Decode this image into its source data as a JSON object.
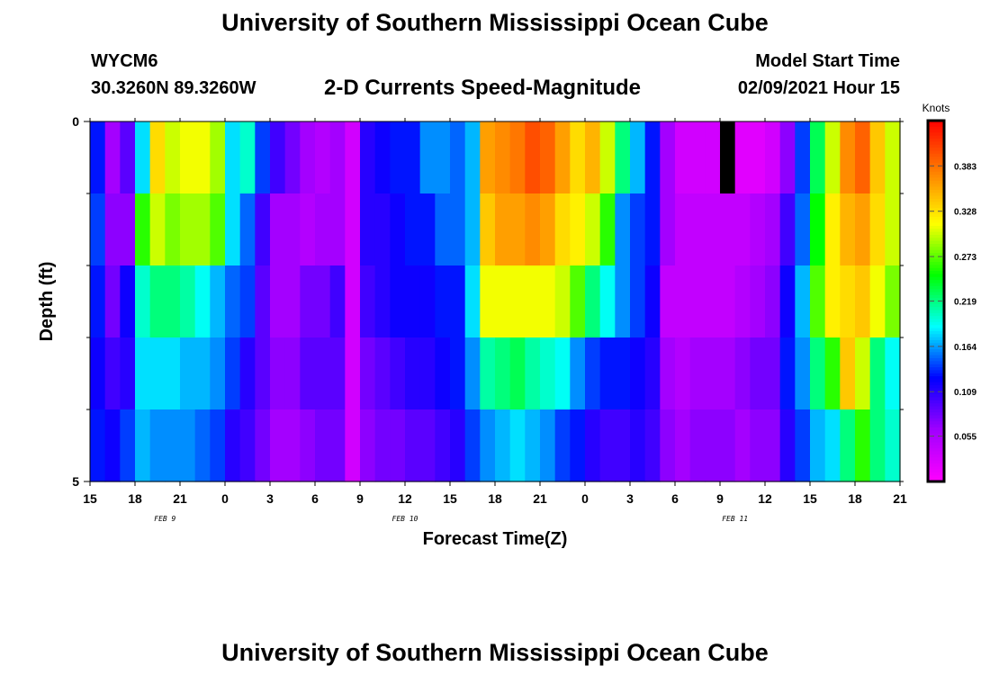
{
  "header": {
    "title": "University of Southern Mississippi Ocean Cube",
    "station": "WYCM6",
    "coords": "30.3260N 89.3260W",
    "chart_title": "2-D Currents Speed-Magnitude",
    "start_label": "Model Start Time",
    "start_value": "02/09/2021 Hour 15"
  },
  "footer": {
    "title": "University of Southern Mississippi Ocean Cube"
  },
  "chart_data": {
    "type": "heatmap",
    "title": "2-D Currents Speed-Magnitude",
    "xlabel": "Forecast Time(Z)",
    "ylabel": "Depth (ft)",
    "x_tick_labels": [
      "15",
      "18",
      "21",
      "0",
      "3",
      "6",
      "9",
      "12",
      "15",
      "18",
      "21",
      "0",
      "3",
      "6",
      "9",
      "12",
      "15",
      "18",
      "21"
    ],
    "date_labels": [
      {
        "label": "FEB 9",
        "hour_index": 5
      },
      {
        "label": "FEB 10",
        "hour_index": 21
      },
      {
        "label": "FEB 11",
        "hour_index": 43
      }
    ],
    "hours": 54,
    "y_tick_labels": [
      "0",
      "5"
    ],
    "ylim": [
      0,
      5
    ],
    "depth_layers": 5,
    "colorbar": {
      "label": "Knots",
      "range": [
        0,
        0.438
      ],
      "ticks": [
        "0.055",
        "0.109",
        "0.164",
        "0.219",
        "0.273",
        "0.328",
        "0.383"
      ],
      "colors": [
        "#ff00ff",
        "#a000ff",
        "#0000ff",
        "#00ffff",
        "#00ff00",
        "#ffff00",
        "#ff8000",
        "#ff0000"
      ]
    },
    "values": [
      [
        0.13,
        0.06,
        0.09,
        0.18,
        0.33,
        0.3,
        0.31,
        0.31,
        0.29,
        0.18,
        0.2,
        0.14,
        0.1,
        0.08,
        0.06,
        0.05,
        0.06,
        0.03,
        0.11,
        0.12,
        0.13,
        0.13,
        0.16,
        0.16,
        0.15,
        0.17,
        0.36,
        0.37,
        0.38,
        0.4,
        0.39,
        0.36,
        0.33,
        0.35,
        0.3,
        0.22,
        0.17,
        0.13,
        0.06,
        0.03,
        0.03,
        0.03,
        null,
        0.02,
        0.02,
        0.03,
        0.07,
        0.14,
        0.23,
        0.3,
        0.37,
        0.39,
        0.34,
        0.3
      ],
      [
        0.14,
        0.07,
        0.07,
        0.26,
        0.3,
        0.28,
        0.29,
        0.29,
        0.27,
        0.18,
        0.15,
        0.1,
        0.06,
        0.06,
        0.05,
        0.06,
        0.06,
        0.03,
        0.11,
        0.11,
        0.12,
        0.13,
        0.13,
        0.15,
        0.15,
        0.17,
        0.34,
        0.36,
        0.36,
        0.37,
        0.36,
        0.33,
        0.32,
        0.3,
        0.26,
        0.16,
        0.14,
        0.13,
        0.06,
        0.04,
        0.04,
        0.04,
        0.04,
        0.04,
        0.05,
        0.06,
        0.1,
        0.15,
        0.25,
        0.32,
        0.35,
        0.36,
        0.33,
        0.3
      ],
      [
        0.13,
        0.08,
        0.12,
        0.2,
        0.22,
        0.22,
        0.21,
        0.19,
        0.17,
        0.15,
        0.14,
        0.09,
        0.06,
        0.06,
        0.08,
        0.08,
        0.1,
        0.03,
        0.1,
        0.11,
        0.12,
        0.12,
        0.12,
        0.13,
        0.13,
        0.18,
        0.31,
        0.31,
        0.31,
        0.31,
        0.31,
        0.3,
        0.27,
        0.22,
        0.19,
        0.16,
        0.14,
        0.12,
        0.04,
        0.04,
        0.04,
        0.04,
        0.04,
        0.05,
        0.06,
        0.07,
        0.12,
        0.17,
        0.27,
        0.32,
        0.33,
        0.34,
        0.31,
        0.28
      ],
      [
        0.12,
        0.1,
        0.11,
        0.18,
        0.18,
        0.18,
        0.17,
        0.17,
        0.16,
        0.14,
        0.11,
        0.09,
        0.07,
        0.07,
        0.09,
        0.09,
        0.09,
        0.03,
        0.08,
        0.09,
        0.1,
        0.11,
        0.11,
        0.12,
        0.13,
        0.16,
        0.21,
        0.22,
        0.23,
        0.21,
        0.2,
        0.19,
        0.16,
        0.14,
        0.13,
        0.13,
        0.12,
        0.11,
        0.06,
        0.05,
        0.06,
        0.06,
        0.06,
        0.07,
        0.08,
        0.08,
        0.13,
        0.16,
        0.22,
        0.26,
        0.34,
        0.3,
        0.22,
        0.19
      ],
      [
        0.13,
        0.12,
        0.14,
        0.17,
        0.16,
        0.16,
        0.16,
        0.15,
        0.14,
        0.11,
        0.1,
        0.08,
        0.06,
        0.06,
        0.07,
        0.08,
        0.08,
        0.03,
        0.07,
        0.08,
        0.08,
        0.09,
        0.09,
        0.1,
        0.11,
        0.14,
        0.16,
        0.17,
        0.18,
        0.17,
        0.16,
        0.14,
        0.13,
        0.11,
        0.1,
        0.1,
        0.11,
        0.1,
        0.07,
        0.06,
        0.07,
        0.07,
        0.07,
        0.06,
        0.07,
        0.07,
        0.11,
        0.14,
        0.17,
        0.18,
        0.22,
        0.26,
        0.22,
        0.2
      ]
    ]
  }
}
